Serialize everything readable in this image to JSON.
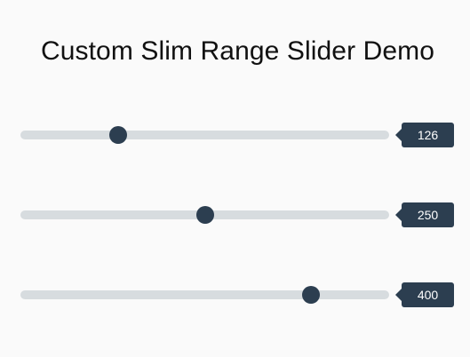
{
  "page": {
    "title": "Custom Slim Range Slider Demo"
  },
  "colors": {
    "background": "#fafafa",
    "track": "#d7dcdf",
    "accent": "#2c3e50",
    "badge_text": "#ffffff"
  },
  "sliders": [
    {
      "value": "126",
      "level": 0.265
    },
    {
      "value": "250",
      "level": 0.502
    },
    {
      "value": "400",
      "level": 0.789
    }
  ]
}
